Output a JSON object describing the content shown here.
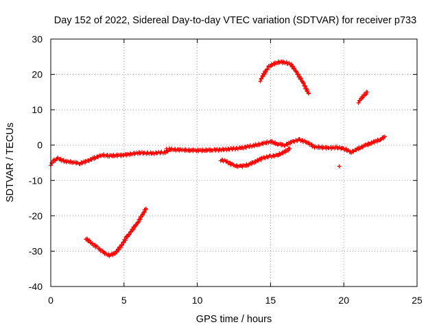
{
  "chart_data": {
    "type": "scatter",
    "title": "Day 152 of 2022, Sidereal Day-to-day VTEC variation (SDTVAR) for receiver p733",
    "xlabel": "GPS time / hours",
    "ylabel": "SDTVAR / TECUs",
    "xlim": [
      0,
      25
    ],
    "ylim": [
      -40,
      30
    ],
    "x_ticks": [
      0,
      5,
      10,
      15,
      20,
      25
    ],
    "y_ticks": [
      -40,
      -30,
      -20,
      -10,
      0,
      10,
      20,
      30
    ],
    "x_tick_labels": [
      "0",
      "5",
      "10",
      "15",
      "20",
      "25"
    ],
    "y_tick_labels": [
      "-40",
      "-30",
      "-20",
      "-10",
      "0",
      "10",
      "20",
      "30"
    ],
    "grid": true,
    "marker": "+",
    "marker_color": "#ff0000",
    "series": [
      {
        "name": "main-track",
        "points": [
          [
            0,
            -5.5
          ],
          [
            0.2,
            -4.4
          ],
          [
            0.5,
            -3.8
          ],
          [
            1.0,
            -4.6
          ],
          [
            1.5,
            -4.8
          ],
          [
            2.0,
            -5.2
          ],
          [
            2.5,
            -4.5
          ],
          [
            3.0,
            -3.6
          ],
          [
            3.5,
            -2.8
          ],
          [
            4.0,
            -3.0
          ],
          [
            5.0,
            -2.8
          ],
          [
            6.0,
            -2.2
          ],
          [
            7.0,
            -2.3
          ],
          [
            7.8,
            -2.0
          ],
          [
            8.2,
            -1.2
          ],
          [
            9.0,
            -1.4
          ],
          [
            10.0,
            -1.5
          ],
          [
            11.0,
            -1.4
          ],
          [
            12.0,
            -1.2
          ],
          [
            13.0,
            -0.8
          ],
          [
            14.0,
            0.0
          ],
          [
            15.0,
            1.0
          ],
          [
            15.5,
            0.3
          ],
          [
            16.0,
            0.0
          ],
          [
            16.5,
            1.0
          ],
          [
            17.0,
            1.5
          ],
          [
            17.5,
            0.8
          ],
          [
            18.0,
            -0.5
          ],
          [
            19.0,
            -0.8
          ],
          [
            19.5,
            -0.7
          ],
          [
            20.0,
            -1.0
          ],
          [
            20.5,
            -2.0
          ],
          [
            21.0,
            -1.0
          ],
          [
            21.5,
            0.0
          ],
          [
            22.0,
            0.8
          ],
          [
            22.5,
            1.6
          ],
          [
            22.8,
            2.4
          ]
        ]
      },
      {
        "name": "lower-track",
        "points": [
          [
            11.6,
            -4.2
          ],
          [
            12.0,
            -4.6
          ],
          [
            12.5,
            -5.8
          ],
          [
            13.0,
            -6.0
          ],
          [
            13.5,
            -5.5
          ],
          [
            14.0,
            -4.6
          ],
          [
            14.5,
            -3.6
          ],
          [
            15.0,
            -3.2
          ],
          [
            15.5,
            -2.8
          ],
          [
            16.0,
            -1.8
          ],
          [
            16.3,
            -1.0
          ]
        ]
      },
      {
        "name": "trough-arc",
        "points": [
          [
            2.4,
            -26.4
          ],
          [
            2.8,
            -27.8
          ],
          [
            3.2,
            -29.0
          ],
          [
            3.6,
            -30.4
          ],
          [
            4.0,
            -31.2
          ],
          [
            4.4,
            -30.6
          ],
          [
            4.8,
            -28.5
          ],
          [
            5.2,
            -26.0
          ],
          [
            5.6,
            -23.8
          ],
          [
            6.0,
            -21.5
          ],
          [
            6.5,
            -18.0
          ]
        ]
      },
      {
        "name": "peak-arc",
        "points": [
          [
            14.3,
            18.3
          ],
          [
            14.6,
            20.5
          ],
          [
            14.9,
            22.2
          ],
          [
            15.2,
            23.0
          ],
          [
            15.6,
            23.5
          ],
          [
            16.0,
            23.4
          ],
          [
            16.4,
            22.8
          ],
          [
            16.8,
            20.5
          ],
          [
            17.2,
            17.8
          ],
          [
            17.6,
            14.6
          ]
        ]
      },
      {
        "name": "short-segment",
        "points": [
          [
            21.0,
            12.2
          ],
          [
            21.2,
            13.2
          ],
          [
            21.4,
            14.1
          ],
          [
            21.6,
            15.0
          ]
        ]
      },
      {
        "name": "outliers",
        "points": [
          [
            19.7,
            -6.0
          ],
          [
            7.9,
            -1.0
          ],
          [
            8.1,
            -0.9
          ]
        ]
      }
    ]
  }
}
